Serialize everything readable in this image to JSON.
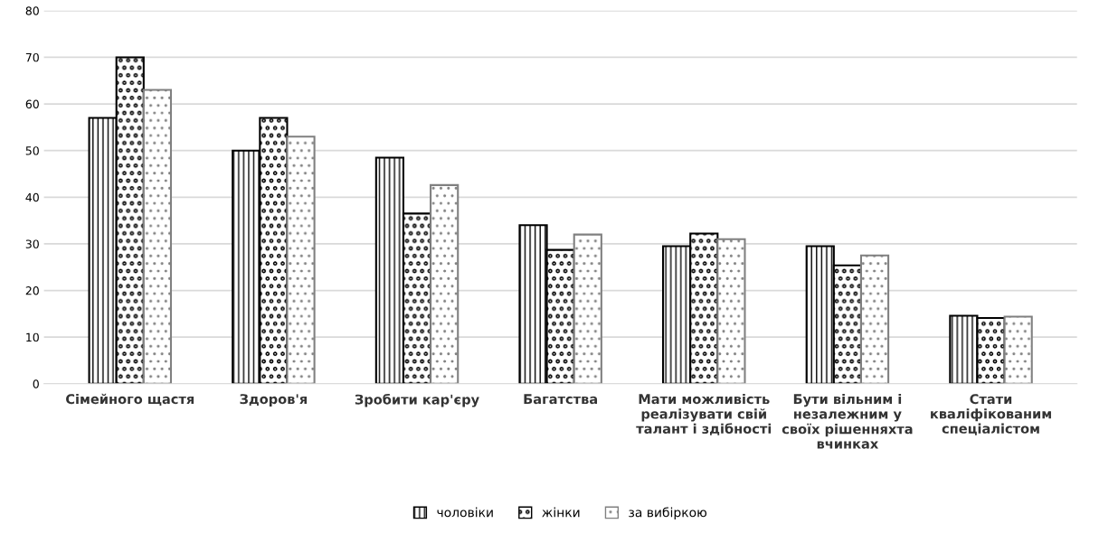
{
  "chart_data": {
    "type": "bar",
    "categories": [
      "Сімейного щастя",
      "Здоров'я",
      "Зробити кар'єру",
      "Багатства",
      "Мати можливість\nреалізувати свій\nталант і здібності",
      "Бути вільним і\nнезалежним у\nсвоїх рішенняхта\nвчинках",
      "Стати\nкваліфікованим\nспеціалістом"
    ],
    "series": [
      {
        "name": "чоловіки",
        "color": "#000000",
        "values": [
          57,
          50,
          48.5,
          34,
          29.5,
          29.5,
          14.6
        ]
      },
      {
        "name": "жінки",
        "color": "#000000",
        "values": [
          70,
          57,
          36.5,
          28.7,
          32.2,
          25.4,
          14.1
        ]
      },
      {
        "name": "за вибіркою",
        "color": "#808080",
        "values": [
          63,
          53,
          42.6,
          32,
          31,
          27.5,
          14.4
        ]
      }
    ],
    "ylim": [
      0,
      80
    ],
    "yticks": [
      0,
      10,
      20,
      30,
      40,
      50,
      60,
      70,
      80
    ],
    "grid": "y",
    "legend": "bottom"
  }
}
